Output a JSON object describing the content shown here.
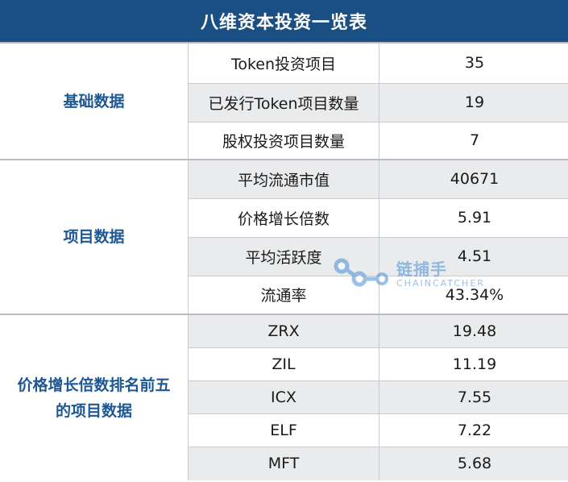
{
  "title": "八维资本投资一览表",
  "groups": [
    {
      "category": "基础数据",
      "rows": [
        {
          "name": "Token投资项目",
          "value": "35"
        },
        {
          "name": "已发行Token项目数量",
          "value": "19"
        },
        {
          "name": "股权投资项目数量",
          "value": "7"
        }
      ]
    },
    {
      "category": "项目数据",
      "rows": [
        {
          "name": "平均流通市值",
          "value": "40671"
        },
        {
          "name": "价格增长倍数",
          "value": "5.91"
        },
        {
          "name": "平均活跃度",
          "value": "4.51"
        },
        {
          "name": "流通率",
          "value": "43.34%"
        }
      ]
    },
    {
      "category_line1": "价格增长倍数排名前五",
      "category_line2": "的项目数据",
      "rows": [
        {
          "name": "ZRX",
          "value": "19.48"
        },
        {
          "name": "ZIL",
          "value": "11.19"
        },
        {
          "name": "ICX",
          "value": "7.55"
        },
        {
          "name": "ELF",
          "value": "7.22"
        },
        {
          "name": "MFT",
          "value": "5.68"
        }
      ]
    }
  ],
  "watermark": {
    "text": "链捕手",
    "subtext": "CHAINCATCHER",
    "icon": "chain-logo-icon"
  },
  "colors": {
    "header_bg": "#1a4f84",
    "category_text": "#1d5794",
    "alt_row_bg": "#eaebec"
  }
}
